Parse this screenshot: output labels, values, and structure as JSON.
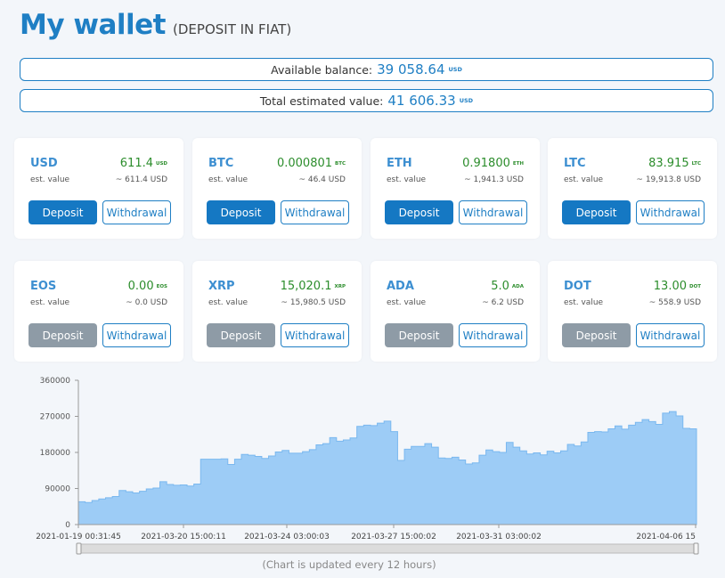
{
  "header": {
    "title": "My wallet",
    "subtitle": "(DEPOSIT IN FIAT)"
  },
  "summary": {
    "available_label": "Available balance:",
    "available_value": "39 058.64",
    "available_currency": "USD",
    "total_label": "Total estimated value:",
    "total_value": "41 606.33",
    "total_currency": "USD"
  },
  "cards": [
    {
      "symbol": "USD",
      "amount": "611.4",
      "unit": "USD",
      "est_label": "est. value",
      "est_value": "~ 611.4 USD",
      "deposit_label": "Deposit",
      "withdrawal_label": "Withdrawal",
      "deposit_enabled": true
    },
    {
      "symbol": "BTC",
      "amount": "0.000801",
      "unit": "BTC",
      "est_label": "est. value",
      "est_value": "~ 46.4 USD",
      "deposit_label": "Deposit",
      "withdrawal_label": "Withdrawal",
      "deposit_enabled": true
    },
    {
      "symbol": "ETH",
      "amount": "0.91800",
      "unit": "ETH",
      "est_label": "est. value",
      "est_value": "~ 1,941.3 USD",
      "deposit_label": "Deposit",
      "withdrawal_label": "Withdrawal",
      "deposit_enabled": true
    },
    {
      "symbol": "LTC",
      "amount": "83.915",
      "unit": "LTC",
      "est_label": "est. value",
      "est_value": "~ 19,913.8 USD",
      "deposit_label": "Deposit",
      "withdrawal_label": "Withdrawal",
      "deposit_enabled": true
    },
    {
      "symbol": "EOS",
      "amount": "0.00",
      "unit": "EOS",
      "est_label": "est. value",
      "est_value": "~ 0.0 USD",
      "deposit_label": "Deposit",
      "withdrawal_label": "Withdrawal",
      "deposit_enabled": false
    },
    {
      "symbol": "XRP",
      "amount": "15,020.1",
      "unit": "XRP",
      "est_label": "est. value",
      "est_value": "~ 15,980.5 USD",
      "deposit_label": "Deposit",
      "withdrawal_label": "Withdrawal",
      "deposit_enabled": false
    },
    {
      "symbol": "ADA",
      "amount": "5.0",
      "unit": "ADA",
      "est_label": "est. value",
      "est_value": "~ 6.2 USD",
      "deposit_label": "Deposit",
      "withdrawal_label": "Withdrawal",
      "deposit_enabled": false
    },
    {
      "symbol": "DOT",
      "amount": "13.00",
      "unit": "DOT",
      "est_label": "est. value",
      "est_value": "~ 558.9 USD",
      "deposit_label": "Deposit",
      "withdrawal_label": "Withdrawal",
      "deposit_enabled": false
    }
  ],
  "colors": {
    "accent": "#1f7fc4",
    "amount_green": "#2c8d2c",
    "deposit_active": "#1578c3",
    "deposit_disabled": "#8e9ba6",
    "area_fill": "#9dccf6",
    "area_stroke": "#7ab8ef"
  },
  "chart_data": {
    "type": "area",
    "ylim": [
      0,
      360000
    ],
    "y_ticks": [
      "360000",
      "270000",
      "180000",
      "90000",
      "0"
    ],
    "x_tick_labels": [
      "2021-01-19 00:31:45",
      "2021-03-20 15:00:11",
      "2021-03-24 03:00:03",
      "2021-03-27 15:00:02",
      "2021-03-31 03:00:02",
      "2021-04-06 15"
    ],
    "values": [
      57000,
      55000,
      60000,
      64000,
      67000,
      70000,
      85000,
      82000,
      79000,
      83000,
      89000,
      91000,
      107000,
      100000,
      98000,
      99000,
      96000,
      101000,
      163000,
      163000,
      163000,
      164000,
      150000,
      163000,
      175000,
      173000,
      170000,
      165000,
      171000,
      181000,
      185000,
      178000,
      178000,
      182000,
      187000,
      199000,
      202000,
      217000,
      208000,
      211000,
      216000,
      245000,
      248000,
      247000,
      253000,
      258000,
      232000,
      160000,
      188000,
      195000,
      195000,
      202000,
      193000,
      166000,
      165000,
      168000,
      161000,
      151000,
      154000,
      173000,
      186000,
      182000,
      180000,
      205000,
      193000,
      184000,
      176000,
      179000,
      174000,
      183000,
      179000,
      184000,
      200000,
      196000,
      206000,
      230000,
      232000,
      231000,
      239000,
      246000,
      238000,
      248000,
      255000,
      262000,
      257000,
      250000,
      278000,
      282000,
      271000,
      240000,
      239000
    ],
    "footnote": "(Chart is updated every 12 hours)"
  }
}
